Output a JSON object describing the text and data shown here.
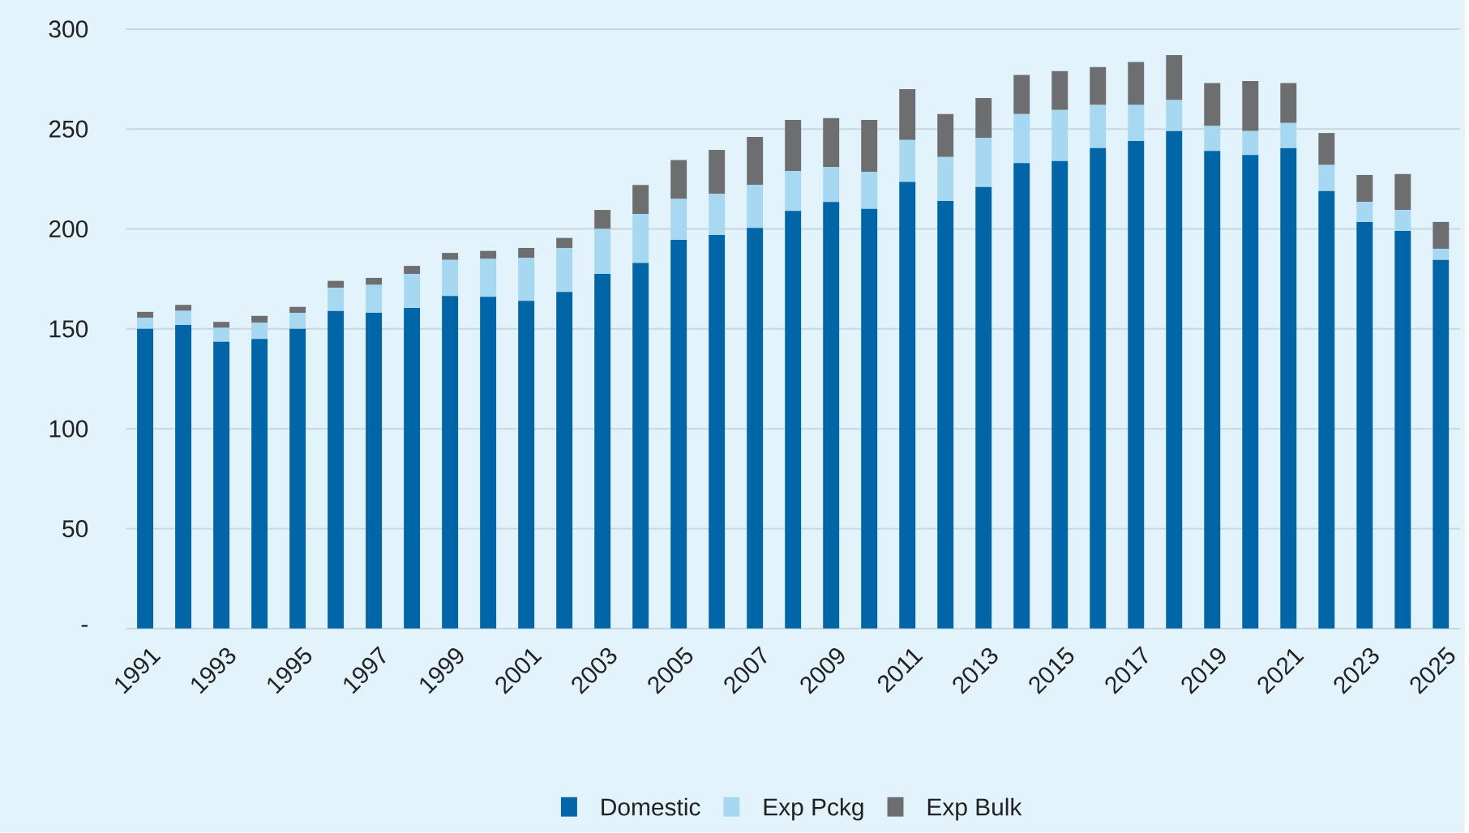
{
  "chart_data": {
    "type": "bar",
    "stacked": true,
    "categories": [
      "1991",
      null,
      "1993",
      null,
      "1995",
      null,
      "1997",
      null,
      "1999",
      null,
      "2001",
      null,
      "2003",
      null,
      "2005",
      null,
      "2007",
      null,
      "2009",
      null,
      "2011",
      null,
      "2013",
      null,
      "2015",
      null,
      "2017",
      null,
      "2019",
      null,
      "2021",
      null,
      "2023",
      null,
      "2025"
    ],
    "series": [
      {
        "name": "Domestic",
        "color": "#0066a8",
        "values": [
          150,
          152,
          143.5,
          145,
          150,
          159,
          158,
          160.5,
          166.5,
          166,
          164,
          168.5,
          177.5,
          183,
          194.5,
          197,
          200.5,
          209,
          213.5,
          210,
          223.5,
          214,
          221,
          233,
          234,
          240.5,
          244,
          249,
          239,
          237,
          240.5,
          219,
          203.5,
          199,
          184.5
        ]
      },
      {
        "name": "Exp Pckg",
        "color": "#a6d8f2",
        "values": [
          5.5,
          7,
          7,
          8,
          8,
          11.5,
          14,
          17,
          18,
          19,
          21.5,
          22,
          22.5,
          24.5,
          20.5,
          20.5,
          21.5,
          20,
          17.5,
          18.5,
          21,
          22,
          24.5,
          24.5,
          25.5,
          21.5,
          18,
          15.5,
          12.5,
          12,
          12.5,
          13,
          10,
          10.5,
          5.5
        ]
      },
      {
        "name": "Exp Bulk",
        "color": "#6d6e70",
        "values": [
          3,
          3,
          3,
          3.5,
          3,
          3.5,
          3.5,
          4,
          3.5,
          4,
          5,
          5,
          9.5,
          14.5,
          19.5,
          22,
          24,
          25.5,
          24.5,
          26,
          25.5,
          21.5,
          20,
          19.5,
          19.5,
          19,
          21.5,
          22.5,
          21.5,
          25,
          20,
          16,
          13.5,
          18,
          13.5
        ]
      }
    ],
    "ylim": [
      0,
      300
    ],
    "yticks": [
      {
        "value": 0,
        "label": "-"
      },
      50,
      100,
      150,
      200,
      250,
      300
    ],
    "grid": "y",
    "legend": "bottom"
  }
}
